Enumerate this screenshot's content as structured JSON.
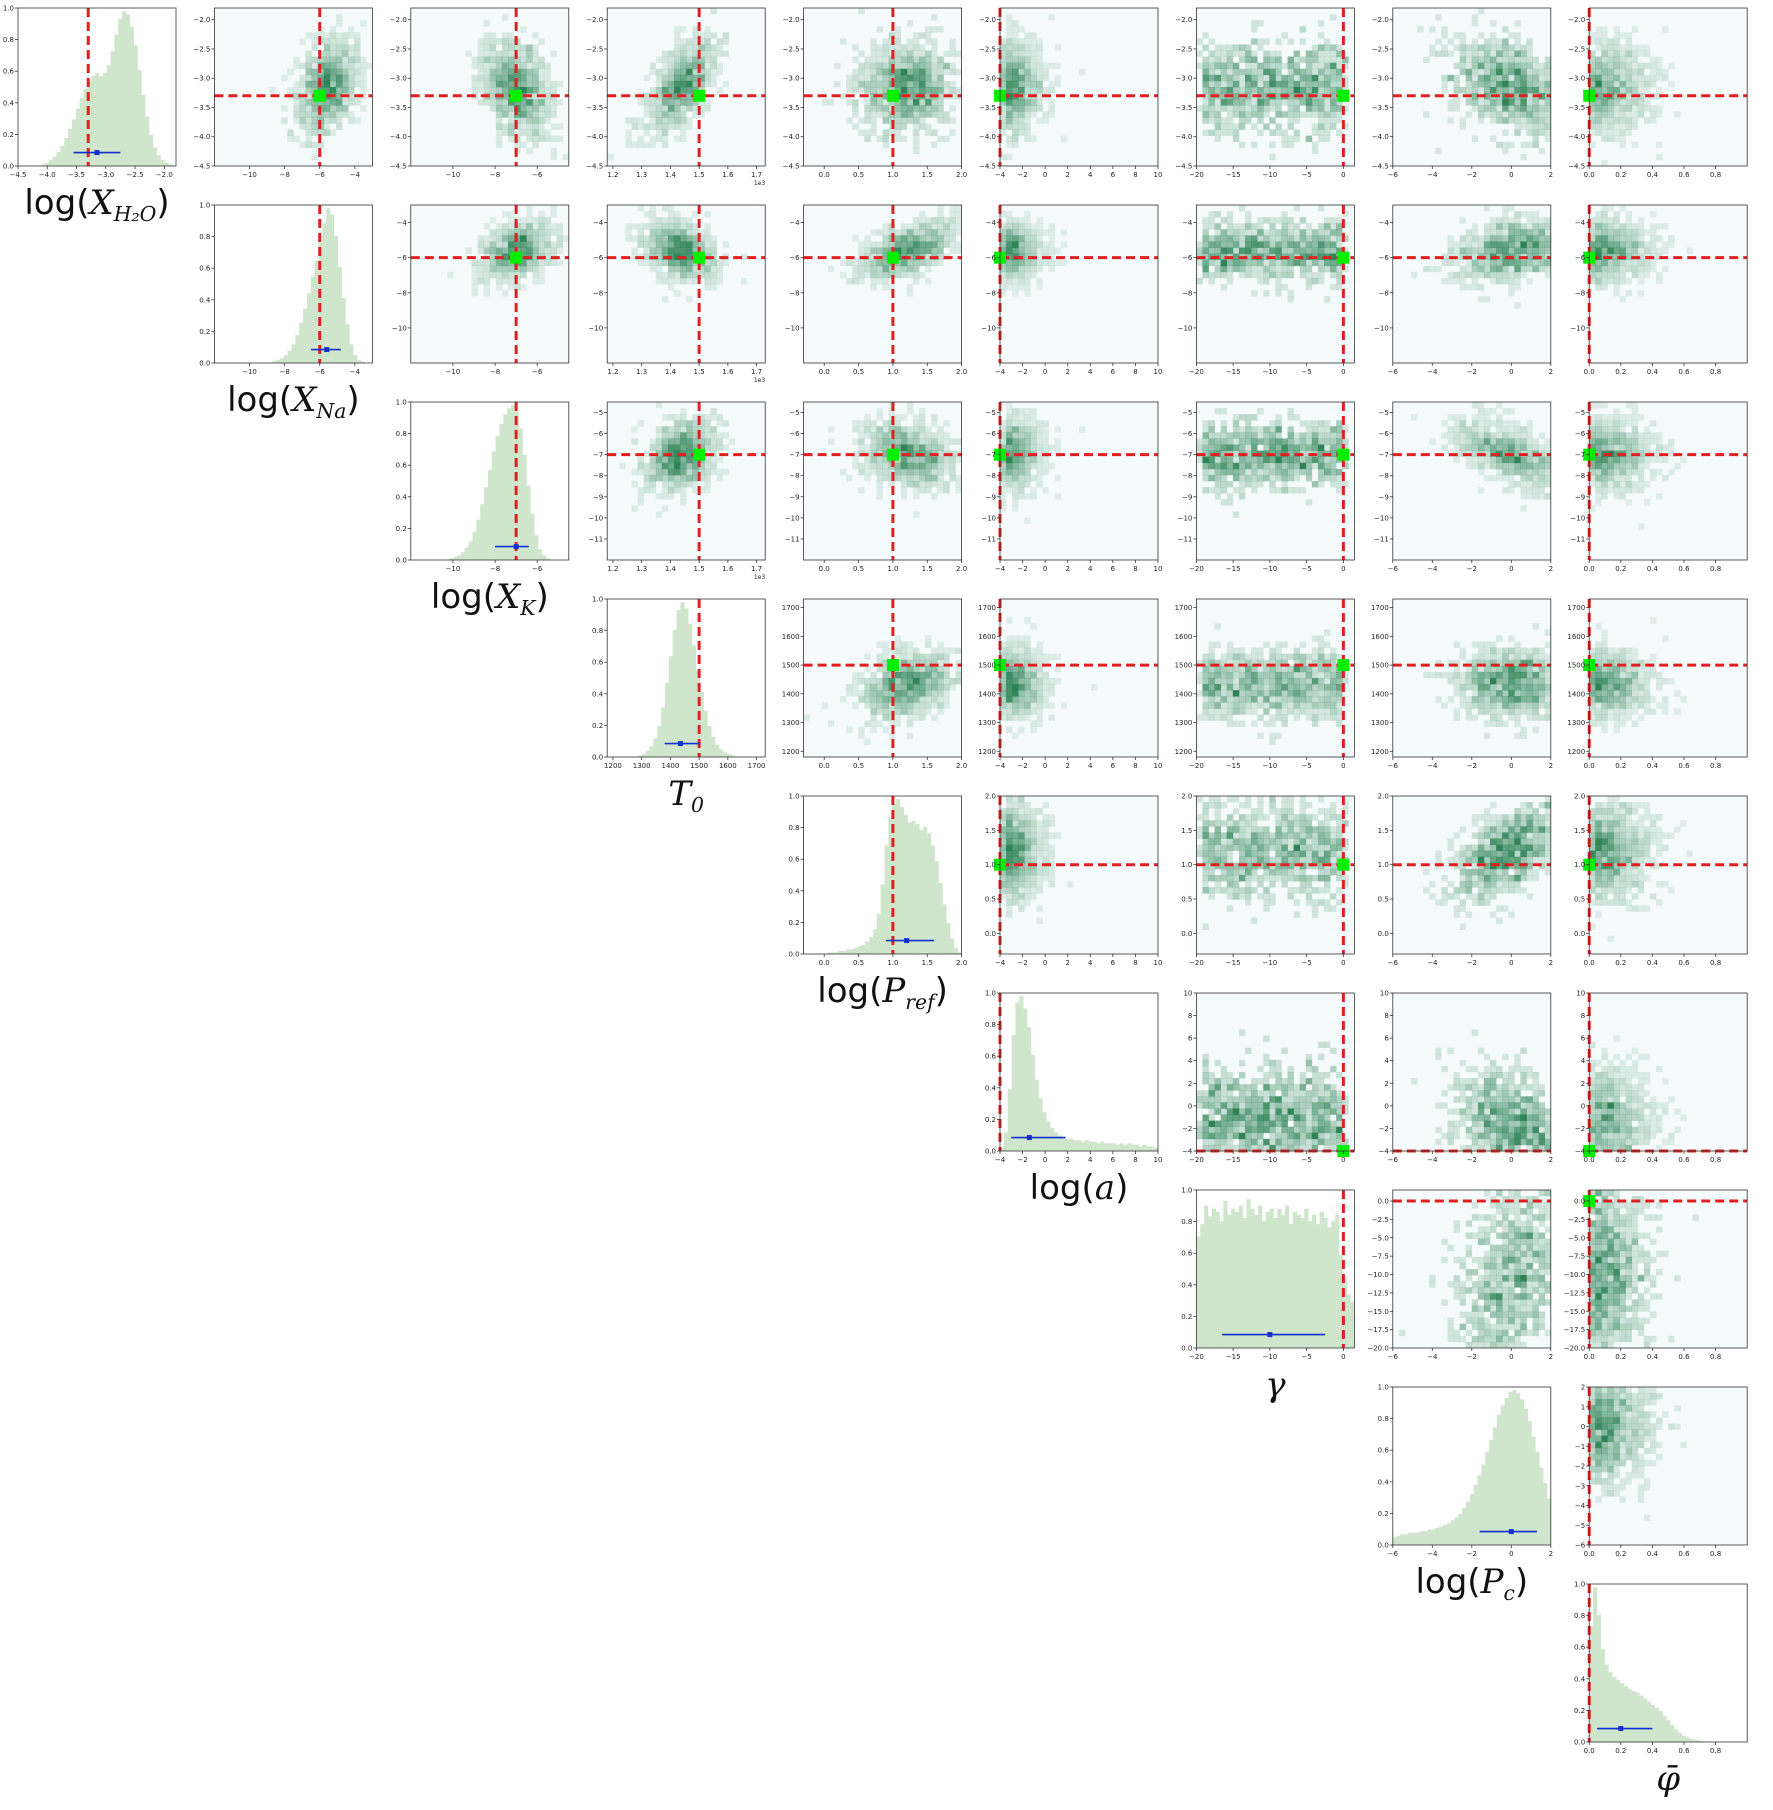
{
  "parameters": [
    {
      "id": "log_x_h2o",
      "fn": "log(",
      "var": "X",
      "sub": "H₂O",
      "close": ")",
      "range": [
        -4.5,
        -1.8
      ],
      "ticks": [
        -4.5,
        -4.0,
        -3.5,
        -3.0,
        -2.5,
        -2.0
      ],
      "truth": -3.3,
      "posterior": {
        "median": -3.15,
        "low": -3.55,
        "high": -2.75
      }
    },
    {
      "id": "log_x_na",
      "fn": "log(",
      "var": "X",
      "sub": "Na",
      "close": ")",
      "range": [
        -12,
        -3
      ],
      "ticks": [
        -10,
        -8,
        -6,
        -4
      ],
      "truth": -6,
      "posterior": {
        "median": -5.6,
        "low": -6.5,
        "high": -4.8
      }
    },
    {
      "id": "log_x_k",
      "fn": "log(",
      "var": "X",
      "sub": "K",
      "close": ")",
      "range": [
        -12,
        -4.5
      ],
      "ticks": [
        -10,
        -8,
        -6
      ],
      "truth": -7,
      "posterior": {
        "median": -7.0,
        "low": -8.0,
        "high": -6.4
      }
    },
    {
      "id": "t0",
      "fn": "",
      "var": "T",
      "sub": "0",
      "close": "",
      "range": [
        1180,
        1730
      ],
      "ticks": [
        1200,
        1300,
        1400,
        1500,
        1600,
        1700
      ],
      "truth": 1500,
      "posterior": {
        "median": 1435,
        "low": 1380,
        "high": 1500
      }
    },
    {
      "id": "log_p_ref",
      "fn": "log(",
      "var": "P",
      "sub": "ref",
      "close": ")",
      "range": [
        -0.3,
        2.0
      ],
      "ticks": [
        0.0,
        0.5,
        1.0,
        1.5,
        2.0
      ],
      "truth": 1.0,
      "posterior": {
        "median": 1.2,
        "low": 0.9,
        "high": 1.6
      }
    },
    {
      "id": "log_a",
      "fn": "log(",
      "var": "a",
      "sub": "",
      "close": ")",
      "range": [
        -4,
        10
      ],
      "ticks": [
        -4,
        -2,
        0,
        2,
        4,
        6,
        8,
        10
      ],
      "truth": -4,
      "posterior": {
        "median": -1.4,
        "low": -3.0,
        "high": 1.8
      }
    },
    {
      "id": "gamma",
      "fn": "",
      "var": "γ",
      "sub": "",
      "close": "",
      "range": [
        -20,
        1.5
      ],
      "ticks": [
        -20,
        -15,
        -10,
        -5,
        0
      ],
      "truth": 0,
      "posterior": {
        "median": -10.0,
        "low": -16.5,
        "high": -2.5
      }
    },
    {
      "id": "log_p_c",
      "fn": "log(",
      "var": "P",
      "sub": "c",
      "close": ")",
      "range": [
        -6,
        2
      ],
      "ticks": [
        -6,
        -4,
        -2,
        0,
        2
      ],
      "truth": null,
      "posterior": {
        "median": 0.0,
        "low": -1.6,
        "high": 1.3
      }
    },
    {
      "id": "phi_bar",
      "fn": "",
      "var": "φ̄",
      "sub": "",
      "close": "",
      "range": [
        0,
        1.0
      ],
      "ticks": [
        0.0,
        0.2,
        0.4,
        0.6,
        0.8
      ],
      "truth": 0.0,
      "posterior": {
        "median": 0.2,
        "low": 0.05,
        "high": 0.4
      }
    }
  ],
  "chart_data": {
    "type": "corner",
    "description_series": [
      "marginal histograms (diagonal)",
      "2D posterior density (off-diagonal)"
    ],
    "truth_line_color": "#e02020",
    "truth_marker_color": "#00ee00",
    "histogram_color": "#cfe6cc",
    "density_color": "#1f7a4a",
    "posterior_marker_color": "#1030d0",
    "diagonal_ylim": [
      0,
      1.0
    ],
    "diagonal_yticks": [
      0.0,
      0.2,
      0.4,
      0.6,
      0.8,
      1.0
    ],
    "row_axis_overrides": {
      "log_x_na": {
        "range": [
          -12,
          -3
        ],
        "ticks": [
          -10,
          -8,
          -6,
          -4
        ]
      },
      "log_x_k": {
        "range": [
          -12,
          -4.5
        ],
        "ticks": [
          -11,
          -10,
          -9,
          -8,
          -7,
          -6,
          -5
        ]
      },
      "gamma": {
        "range": [
          -20,
          1.5
        ],
        "ticks": [
          -20.0,
          -17.5,
          -15.0,
          -12.5,
          -10.0,
          -7.5,
          -5.0,
          -2.5,
          0.0
        ]
      },
      "log_p_c": {
        "range": [
          -6,
          2
        ],
        "ticks": [
          -6,
          -5,
          -4,
          -3,
          -2,
          -1,
          0,
          1,
          2
        ]
      },
      "log_p_ref": {
        "range": [
          -0.3,
          2.0
        ],
        "ticks": [
          0.0,
          0.5,
          1.0,
          1.5,
          2.0
        ]
      },
      "log_a": {
        "range": [
          -4,
          10
        ],
        "ticks": [
          -4,
          -2,
          0,
          2,
          4,
          6,
          8,
          10
        ]
      }
    },
    "t0_column_tick_labels": [
      "1.2",
      "1.3",
      "1.4",
      "1.5",
      "1.6",
      "1.7"
    ],
    "t0_column_multiplier": "1e3",
    "histogram_profiles": {
      "log_x_h2o": [
        0,
        0,
        0,
        0,
        0,
        0,
        0.01,
        0.02,
        0.04,
        0.06,
        0.09,
        0.13,
        0.18,
        0.24,
        0.3,
        0.37,
        0.44,
        0.5,
        0.55,
        0.58,
        0.6,
        0.58,
        0.6,
        0.65,
        0.74,
        0.85,
        0.95,
        1.0,
        0.98,
        0.9,
        0.78,
        0.62,
        0.46,
        0.32,
        0.2,
        0.12,
        0.07,
        0.04,
        0.02,
        0.01,
        0
      ],
      "log_x_na": [
        0,
        0,
        0,
        0,
        0,
        0,
        0,
        0,
        0,
        0,
        0,
        0,
        0,
        0,
        0,
        0.01,
        0.02,
        0.03,
        0.05,
        0.08,
        0.12,
        0.18,
        0.26,
        0.35,
        0.45,
        0.56,
        0.66,
        0.78,
        0.9,
        1.0,
        0.96,
        0.82,
        0.62,
        0.42,
        0.25,
        0.12,
        0.05,
        0.02,
        0.01,
        0,
        0
      ],
      "log_x_k": [
        0,
        0,
        0,
        0,
        0,
        0,
        0,
        0,
        0,
        0,
        0.01,
        0.02,
        0.03,
        0.05,
        0.08,
        0.12,
        0.18,
        0.26,
        0.36,
        0.47,
        0.58,
        0.7,
        0.8,
        0.88,
        0.94,
        0.98,
        1.0,
        0.96,
        0.85,
        0.68,
        0.48,
        0.3,
        0.16,
        0.07,
        0.03,
        0.01,
        0,
        0,
        0,
        0,
        0
      ],
      "t0": [
        0,
        0,
        0,
        0,
        0,
        0,
        0,
        0,
        0.01,
        0.02,
        0.04,
        0.07,
        0.12,
        0.2,
        0.32,
        0.48,
        0.65,
        0.82,
        0.95,
        1.0,
        0.96,
        0.86,
        0.72,
        0.56,
        0.42,
        0.3,
        0.2,
        0.13,
        0.08,
        0.05,
        0.03,
        0.02,
        0.01,
        0,
        0,
        0,
        0,
        0,
        0,
        0,
        0
      ],
      "log_p_ref": [
        0,
        0,
        0,
        0,
        0,
        0,
        0.01,
        0.01,
        0.01,
        0.02,
        0.02,
        0.03,
        0.03,
        0.04,
        0.05,
        0.06,
        0.08,
        0.11,
        0.16,
        0.26,
        0.45,
        0.7,
        0.88,
        0.97,
        1.0,
        0.95,
        0.9,
        0.85,
        0.86,
        0.84,
        0.8,
        0.82,
        0.78,
        0.7,
        0.6,
        0.46,
        0.32,
        0.2,
        0.1,
        0.04,
        0.01
      ],
      "log_a": [
        0.02,
        0.12,
        0.4,
        0.75,
        0.96,
        1.0,
        0.92,
        0.8,
        0.62,
        0.46,
        0.34,
        0.25,
        0.19,
        0.15,
        0.12,
        0.1,
        0.09,
        0.08,
        0.08,
        0.07,
        0.07,
        0.06,
        0.07,
        0.06,
        0.06,
        0.05,
        0.06,
        0.05,
        0.05,
        0.05,
        0.04,
        0.05,
        0.04,
        0.05,
        0.04,
        0.04,
        0.03,
        0.04,
        0.03,
        0.03,
        0.02
      ],
      "gamma": [
        0.72,
        0.8,
        0.92,
        0.85,
        0.9,
        0.88,
        0.82,
        0.95,
        0.86,
        0.9,
        0.88,
        0.92,
        0.84,
        0.96,
        0.9,
        0.86,
        0.92,
        0.82,
        0.88,
        0.9,
        0.84,
        0.9,
        0.86,
        0.92,
        0.8,
        0.88,
        0.86,
        0.84,
        0.9,
        0.82,
        0.86,
        0.8,
        0.88,
        0.84,
        0.78,
        0.82,
        0.86,
        0.6,
        0.45,
        0.35,
        0.3
      ],
      "log_p_c": [
        0.05,
        0.06,
        0.07,
        0.07,
        0.08,
        0.08,
        0.08,
        0.09,
        0.09,
        0.1,
        0.1,
        0.11,
        0.12,
        0.13,
        0.14,
        0.16,
        0.18,
        0.2,
        0.24,
        0.28,
        0.33,
        0.39,
        0.45,
        0.52,
        0.6,
        0.68,
        0.76,
        0.84,
        0.9,
        0.95,
        0.99,
        1.0,
        0.98,
        0.94,
        0.88,
        0.8,
        0.7,
        0.6,
        0.5,
        0.4,
        0.3
      ],
      "phi_bar": [
        0.75,
        1.0,
        0.82,
        0.6,
        0.5,
        0.45,
        0.42,
        0.4,
        0.38,
        0.36,
        0.34,
        0.33,
        0.32,
        0.3,
        0.28,
        0.26,
        0.24,
        0.22,
        0.2,
        0.17,
        0.14,
        0.11,
        0.08,
        0.06,
        0.04,
        0.03,
        0.02,
        0.015,
        0.01,
        0.005,
        0,
        0,
        0,
        0,
        0,
        0,
        0,
        0,
        0,
        0,
        0
      ]
    }
  }
}
